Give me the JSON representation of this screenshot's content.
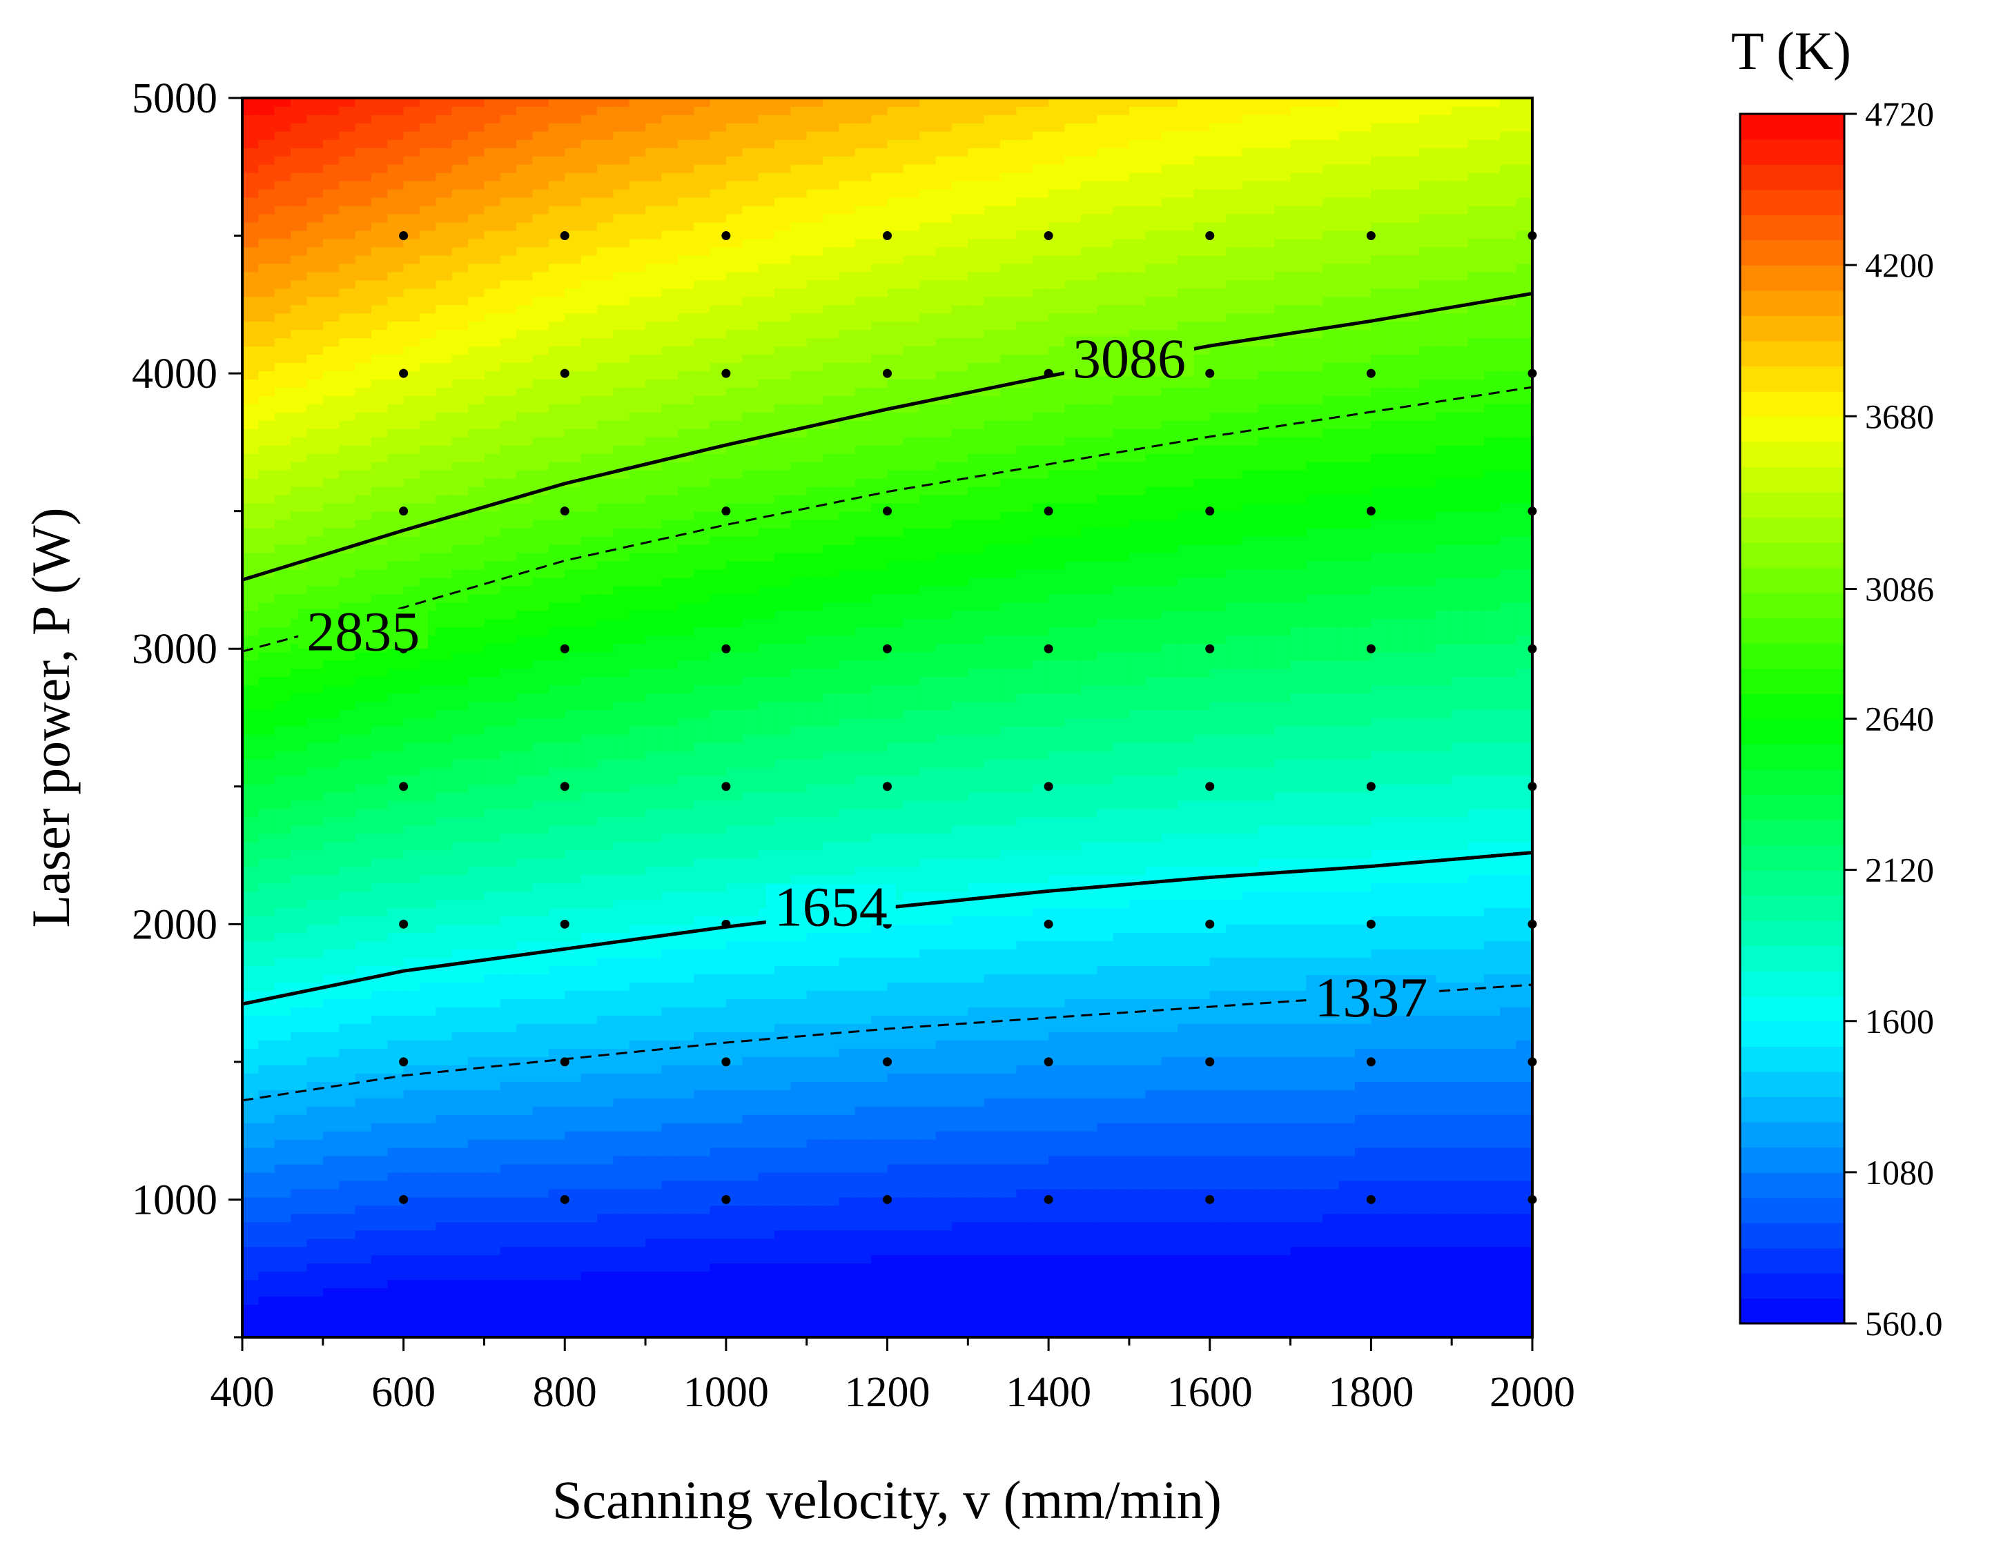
{
  "chart_data": {
    "type": "heatmap",
    "subtype": "filled-contour",
    "xlabel": "Scanning velocity, v (mm/min)",
    "ylabel": "Laser power, P (W)",
    "xlim": [
      400,
      2000
    ],
    "ylim": [
      500,
      5000
    ],
    "x_ticks": [
      400,
      600,
      800,
      1000,
      1200,
      1400,
      1600,
      1800,
      2000
    ],
    "y_ticks": [
      1000,
      2000,
      3000,
      4000,
      5000
    ],
    "x_tick_labels": [
      "400",
      "600",
      "800",
      "1000",
      "1200",
      "1400",
      "1600",
      "1800",
      "2000"
    ],
    "y_tick_labels": [
      "1000",
      "2000",
      "3000",
      "4000",
      "5000"
    ],
    "grid": false,
    "colorbar": {
      "title": "T (K)",
      "min": 560,
      "max": 4720,
      "tick_values": [
        560,
        1080,
        1600,
        2120,
        2640,
        3086,
        3680,
        4200,
        4720
      ],
      "tick_labels": [
        "560.0",
        "1080",
        "1600",
        "2120",
        "2640",
        "3086",
        "3680",
        "4200",
        "4720"
      ],
      "levels": 48,
      "colors": [
        "#0000ff",
        "#007fff",
        "#00ffff",
        "#00ff7f",
        "#00ff00",
        "#7fff00",
        "#ffff00",
        "#ff7f00",
        "#ff0000"
      ],
      "placement": "right"
    },
    "sample_points": {
      "x": [
        600,
        800,
        1000,
        1200,
        1400,
        1600,
        1800,
        2000
      ],
      "y": [
        1000,
        1500,
        2000,
        2500,
        3000,
        3500,
        4000,
        4500
      ]
    },
    "contours": [
      {
        "level": "3086",
        "style": "solid",
        "x": [
          400,
          600,
          800,
          1000,
          1200,
          1400,
          1600,
          1800,
          2000
        ],
        "y": [
          3250,
          3430,
          3600,
          3740,
          3870,
          3990,
          4100,
          4190,
          4290
        ],
        "label_at": [
          1500,
          4050
        ]
      },
      {
        "level": "2835",
        "style": "dashed",
        "x": [
          400,
          600,
          800,
          1000,
          1200,
          1400,
          1600,
          1800,
          2000
        ],
        "y": [
          2990,
          3150,
          3320,
          3450,
          3570,
          3670,
          3770,
          3860,
          3950
        ],
        "label_at": [
          550,
          3060
        ]
      },
      {
        "level": "1654",
        "style": "solid",
        "x": [
          400,
          600,
          800,
          1000,
          1200,
          1400,
          1600,
          1800,
          2000
        ],
        "y": [
          1710,
          1830,
          1910,
          1990,
          2060,
          2120,
          2170,
          2210,
          2260
        ],
        "label_at": [
          1130,
          2060
        ]
      },
      {
        "level": "1337",
        "style": "dashed",
        "x": [
          400,
          600,
          800,
          1000,
          1200,
          1400,
          1600,
          1800,
          2000
        ],
        "y": [
          1360,
          1450,
          1510,
          1570,
          1620,
          1660,
          1700,
          1740,
          1780
        ],
        "label_at": [
          1800,
          1730
        ]
      }
    ]
  }
}
